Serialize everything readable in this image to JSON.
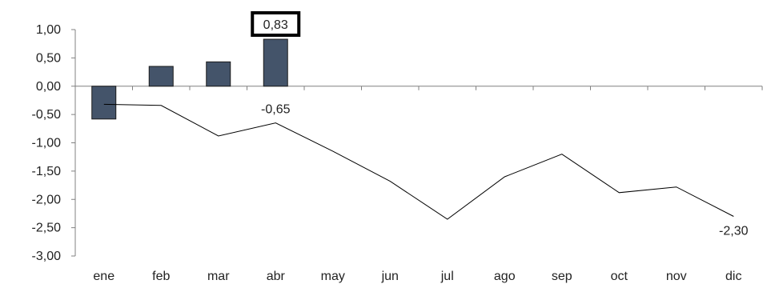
{
  "chart_data": {
    "type": "bar+line",
    "categories": [
      "ene",
      "feb",
      "mar",
      "abr",
      "may",
      "jun",
      "jul",
      "ago",
      "sep",
      "oct",
      "nov",
      "dic"
    ],
    "ylim": [
      -3.0,
      1.0
    ],
    "yticks": [
      "1,00",
      "0,50",
      "0,00",
      "-0,50",
      "-1,00",
      "-1,50",
      "-2,00",
      "-2,50",
      "-3,00"
    ],
    "ytick_values": [
      1.0,
      0.5,
      0.0,
      -0.5,
      -1.0,
      -1.5,
      -2.0,
      -2.5,
      -3.0
    ],
    "series": [
      {
        "kind": "bar",
        "values": [
          -0.58,
          0.35,
          0.43,
          0.83,
          null,
          null,
          null,
          null,
          null,
          null,
          null,
          null
        ]
      },
      {
        "kind": "line",
        "values": [
          -0.32,
          -0.34,
          -0.88,
          -0.65,
          -1.15,
          -1.68,
          -2.35,
          -1.6,
          -1.2,
          -1.88,
          -1.78,
          -2.3
        ]
      }
    ],
    "data_labels": {
      "bar_abr": "0,83",
      "line_abr": "-0,65",
      "line_dic": "-2,30"
    },
    "colors": {
      "bar": "#44546a",
      "line": "#000000",
      "axis": "#808080"
    }
  }
}
